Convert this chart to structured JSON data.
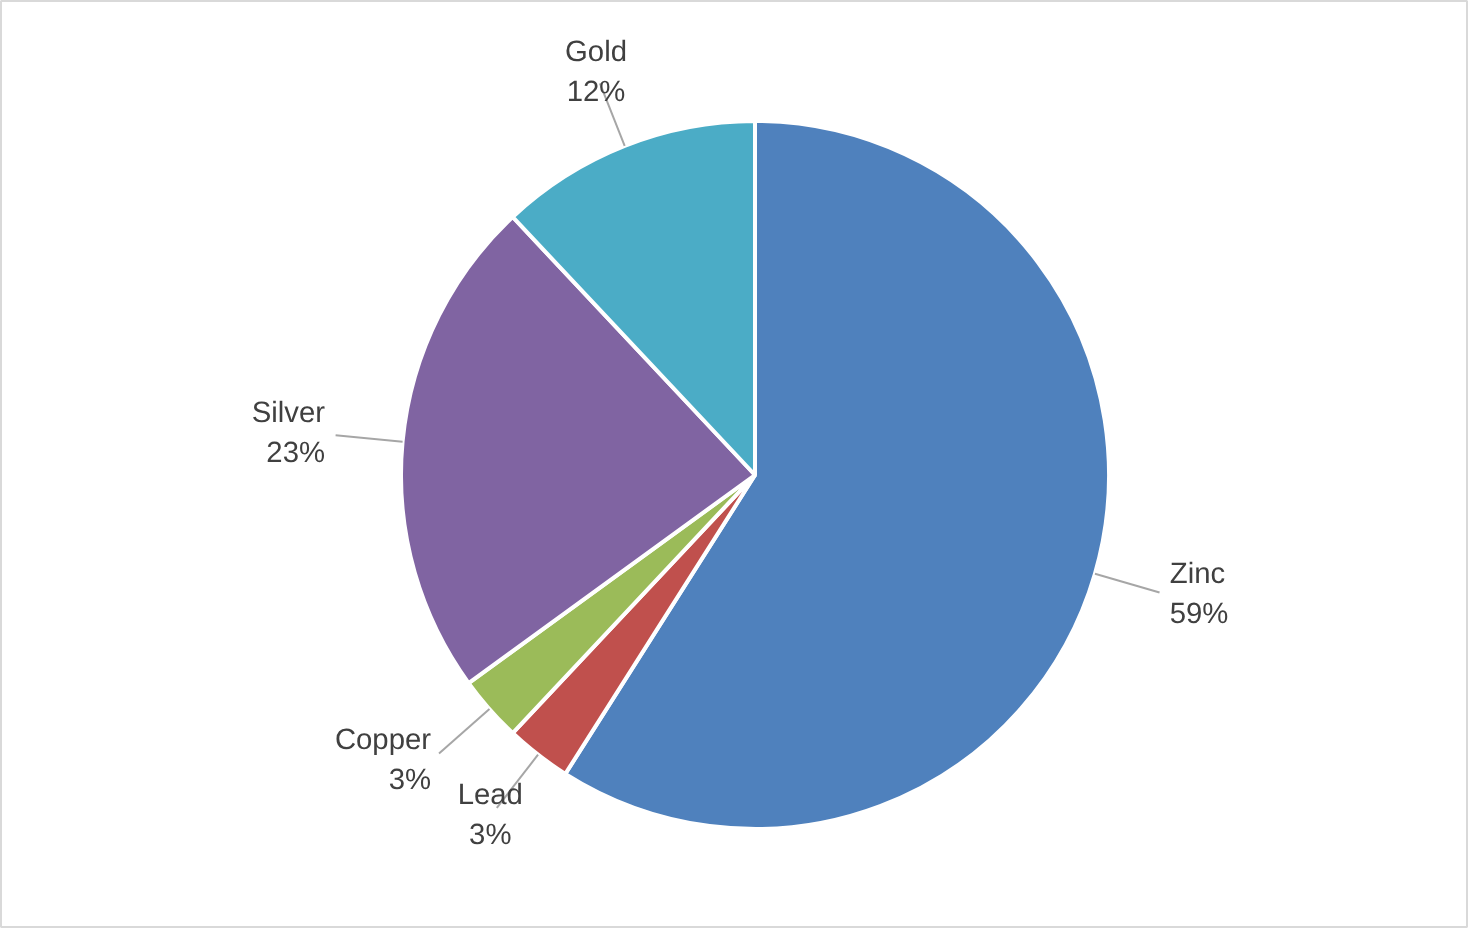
{
  "chart_data": {
    "type": "pie",
    "categories": [
      "Zinc",
      "Lead",
      "Copper",
      "Silver",
      "Gold"
    ],
    "values": [
      59,
      3,
      3,
      23,
      12
    ],
    "value_labels": [
      "59%",
      "3%",
      "3%",
      "23%",
      "12%"
    ],
    "colors": [
      "#4f81bd",
      "#c0504d",
      "#9bbb59",
      "#8064a2",
      "#4bacc6"
    ],
    "legend": false
  }
}
